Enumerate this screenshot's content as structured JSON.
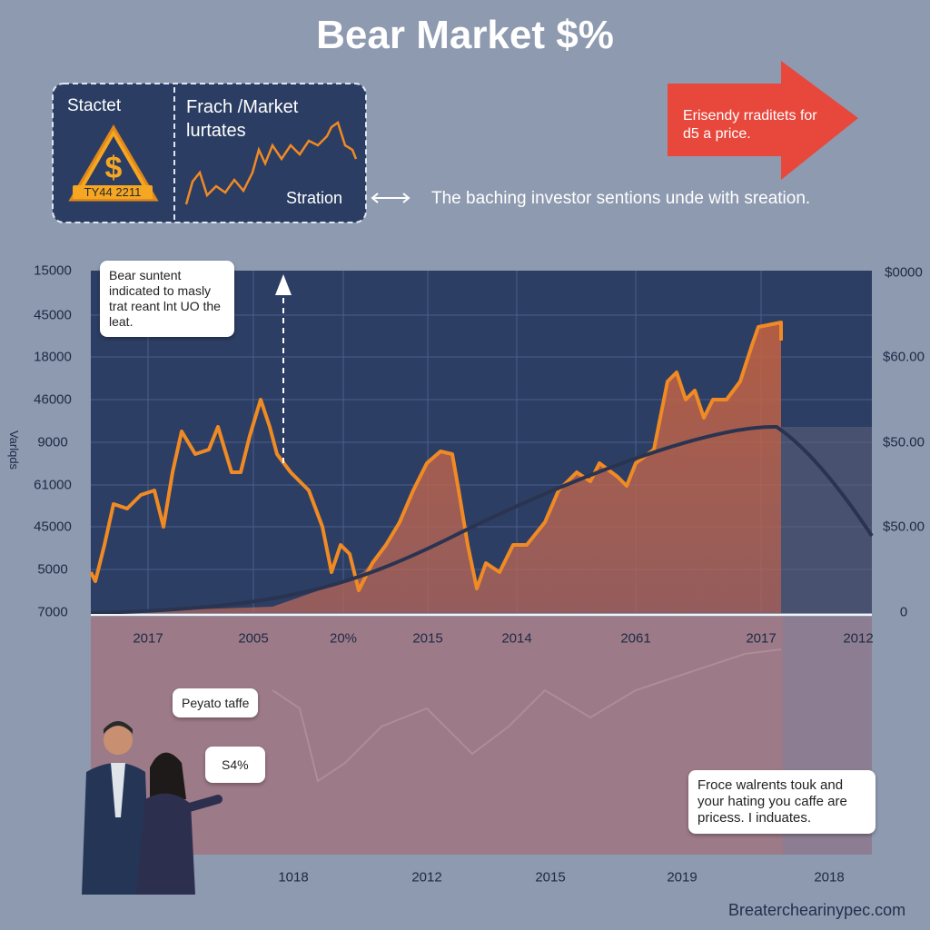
{
  "title": "Bear Market $%",
  "panel": {
    "left_label": "Stactet",
    "badge": "TY44 2211",
    "right_title": "Frach /Market lurtates",
    "right_caption": "Stration"
  },
  "arrow_callout": "Erisendy rraditets for d5 a price.",
  "caption": "The baching investor sentions unde with sreation.",
  "chart": {
    "axis_label": "Varlqds",
    "y_labels": [
      "15000",
      "45000",
      "18000",
      "46000",
      "9000",
      "61000",
      "45000",
      "5000",
      "7000"
    ],
    "y2_labels": [
      "$0000",
      "$60.00",
      "$50.00",
      "$50.00",
      "0"
    ],
    "x_labels": [
      "2017",
      "2005",
      "20%",
      "2015",
      "2014",
      "2061",
      "2017",
      "2012"
    ],
    "annotation": "Bear suntent indicated to masly trat reant lnt UO the leat.",
    "x_labels_bottom": [
      "1018",
      "2012",
      "2015",
      "2019",
      "2018"
    ]
  },
  "bubbles": [
    "Peyato taffe",
    "S4%"
  ],
  "note": "Froce walrents touk and your hating you caffe are pricess. I induates.",
  "footer": "Breaterchearinypec.com"
}
